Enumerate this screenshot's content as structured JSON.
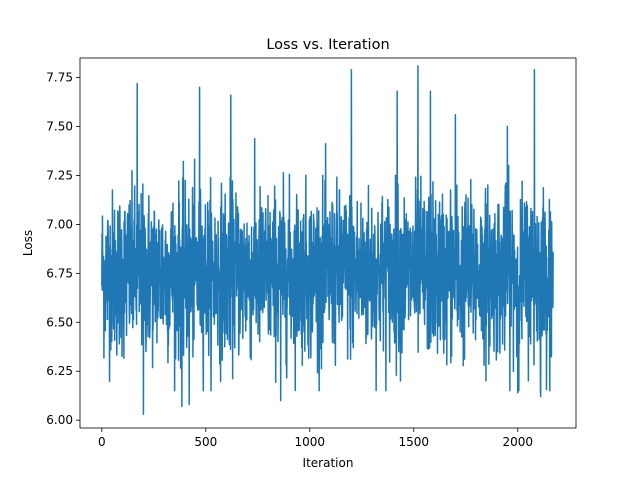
{
  "chart_data": {
    "type": "line",
    "title": "Loss vs. Iteration",
    "xlabel": "Iteration",
    "ylabel": "Loss",
    "xlim": [
      -105,
      2280
    ],
    "ylim": [
      5.96,
      7.85
    ],
    "xticks": [
      0,
      500,
      1000,
      1500,
      2000
    ],
    "yticks": [
      6.0,
      6.25,
      6.5,
      6.75,
      7.0,
      7.25,
      7.5,
      7.75
    ],
    "xtick_labels": [
      "0",
      "500",
      "1000",
      "1500",
      "2000"
    ],
    "ytick_labels": [
      "6.00",
      "6.25",
      "6.50",
      "6.75",
      "7.00",
      "7.25",
      "7.50",
      "7.75"
    ],
    "grid": false,
    "legend": "none",
    "series_color": "#1f77b4",
    "series": [
      {
        "x_start": 0,
        "x_end": 2170,
        "num_points": 2171,
        "mean": 6.75,
        "std": 0.21,
        "min": 6.03,
        "max": 7.81,
        "peaks": [
          {
            "x": 170,
            "y": 7.72
          },
          {
            "x": 200,
            "y": 6.03
          },
          {
            "x": 470,
            "y": 7.7
          },
          {
            "x": 620,
            "y": 7.66
          },
          {
            "x": 385,
            "y": 6.07
          },
          {
            "x": 420,
            "y": 6.08
          },
          {
            "x": 860,
            "y": 6.1
          },
          {
            "x": 1200,
            "y": 7.79
          },
          {
            "x": 1520,
            "y": 7.81
          },
          {
            "x": 1420,
            "y": 7.68
          },
          {
            "x": 1580,
            "y": 7.68
          },
          {
            "x": 2080,
            "y": 7.79
          },
          {
            "x": 2000,
            "y": 6.14
          },
          {
            "x": 2110,
            "y": 6.12
          },
          {
            "x": 1700,
            "y": 7.56
          },
          {
            "x": 1950,
            "y": 7.5
          }
        ]
      }
    ]
  }
}
